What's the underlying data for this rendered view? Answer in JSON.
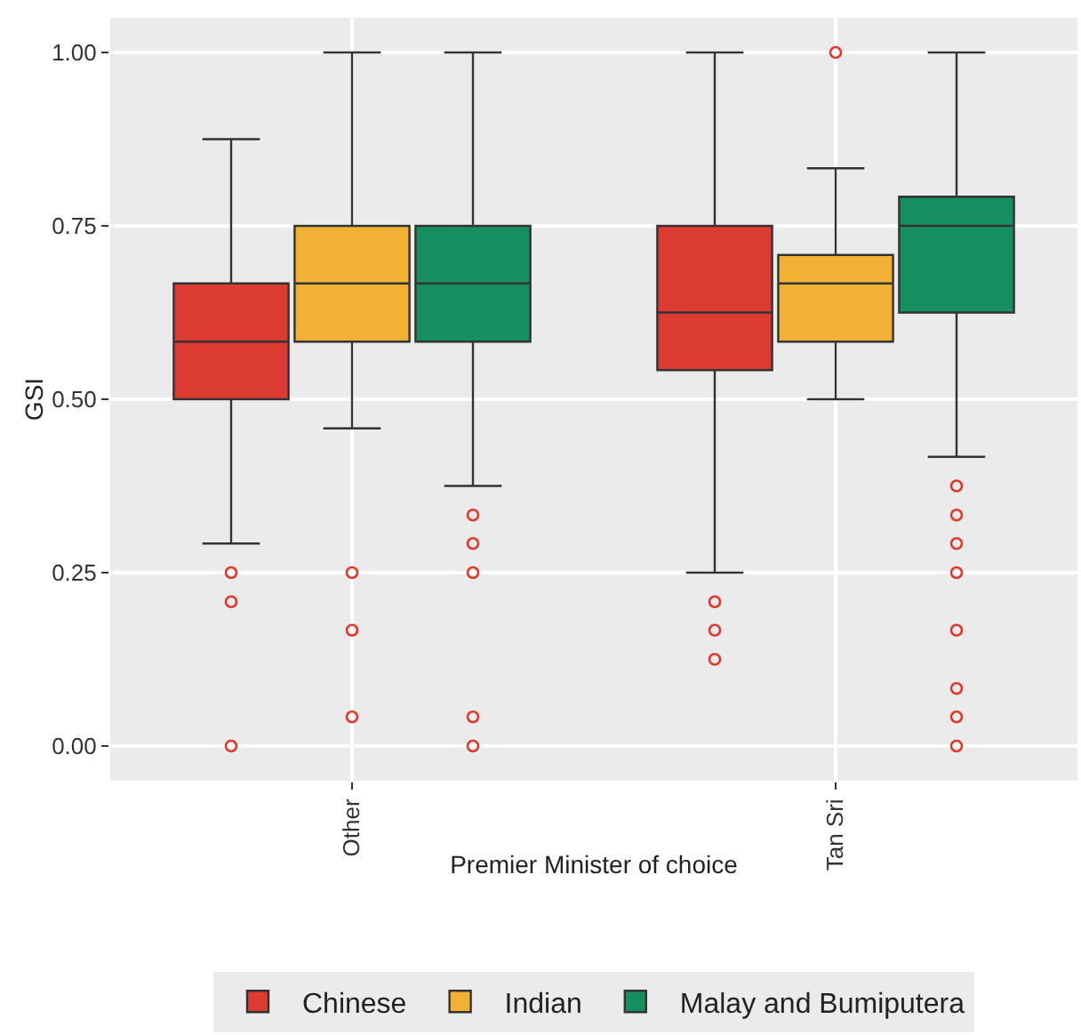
{
  "chart_data": {
    "type": "box",
    "xlabel": "Premier Minister of choice",
    "ylabel": "GSI",
    "categories": [
      "Other",
      "Tan Sri"
    ],
    "ylim": [
      -0.05,
      1.05
    ],
    "yticks": [
      {
        "value": 0,
        "label": "0.00"
      },
      {
        "value": 0.25,
        "label": "0.25"
      },
      {
        "value": 0.5,
        "label": "0.50"
      },
      {
        "value": 0.75,
        "label": "0.75"
      },
      {
        "value": 1,
        "label": "1.00"
      }
    ],
    "grid": true,
    "legend": "bottom",
    "series": [
      {
        "name": "Chinese",
        "color": "#dd3a32",
        "boxes": [
          {
            "low": 0.292,
            "q1": 0.5,
            "median": 0.583,
            "q3": 0.667,
            "high": 0.875,
            "outliers": [
              0.25,
              0.208,
              0
            ]
          },
          {
            "low": 0.25,
            "q1": 0.542,
            "median": 0.625,
            "q3": 0.75,
            "high": 1,
            "outliers": [
              0.208,
              0.167,
              0.125
            ]
          }
        ]
      },
      {
        "name": "Indian",
        "color": "#f2b134",
        "boxes": [
          {
            "low": 0.458,
            "q1": 0.583,
            "median": 0.667,
            "q3": 0.75,
            "high": 1,
            "outliers": [
              0.25,
              0.167,
              0.042
            ]
          },
          {
            "low": 0.5,
            "q1": 0.583,
            "median": 0.667,
            "q3": 0.708,
            "high": 0.833,
            "outliers": [
              1
            ]
          }
        ]
      },
      {
        "name": "Malay and Bumiputera",
        "color": "#168f5e",
        "boxes": [
          {
            "low": 0.375,
            "q1": 0.583,
            "median": 0.667,
            "q3": 0.75,
            "high": 1,
            "outliers": [
              0.333,
              0.292,
              0.25,
              0.042,
              0
            ]
          },
          {
            "low": 0.417,
            "q1": 0.625,
            "median": 0.75,
            "q3": 0.792,
            "high": 1,
            "outliers": [
              0.375,
              0.333,
              0.292,
              0.25,
              0.167,
              0.083,
              0.042,
              0
            ]
          }
        ]
      }
    ]
  }
}
